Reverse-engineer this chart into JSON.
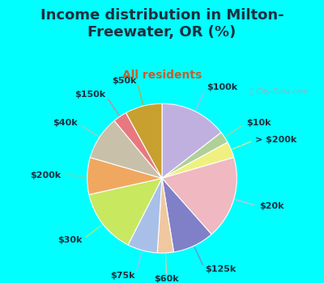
{
  "title": "Income distribution in Milton-\nFreewater, OR (%)",
  "subtitle": "All residents",
  "background_outer": "#00FFFF",
  "background_inner": "#e8f8f0",
  "watermark": "City-Data.com",
  "slices": [
    {
      "label": "$100k",
      "value": 14.5,
      "color": "#c0b0e0"
    },
    {
      "label": "$10k",
      "value": 2.5,
      "color": "#b0d098"
    },
    {
      "label": "> $200k",
      "value": 3.5,
      "color": "#f0f080"
    },
    {
      "label": "$20k",
      "value": 18.0,
      "color": "#f0b8c0"
    },
    {
      "label": "$125k",
      "value": 9.0,
      "color": "#8080c8"
    },
    {
      "label": "$60k",
      "value": 3.5,
      "color": "#f0c8a0"
    },
    {
      "label": "$75k",
      "value": 6.5,
      "color": "#a8c0e8"
    },
    {
      "label": "$30k",
      "value": 14.0,
      "color": "#c8e860"
    },
    {
      "label": "$200k",
      "value": 8.0,
      "color": "#f0a860"
    },
    {
      "label": "$40k",
      "value": 9.5,
      "color": "#c8c0a8"
    },
    {
      "label": "$150k",
      "value": 3.0,
      "color": "#e87880"
    },
    {
      "label": "$50k",
      "value": 8.0,
      "color": "#c8a030"
    }
  ],
  "label_fontsize": 8,
  "title_fontsize": 13,
  "subtitle_fontsize": 10,
  "title_color": "#1a3040",
  "subtitle_color": "#c06030"
}
